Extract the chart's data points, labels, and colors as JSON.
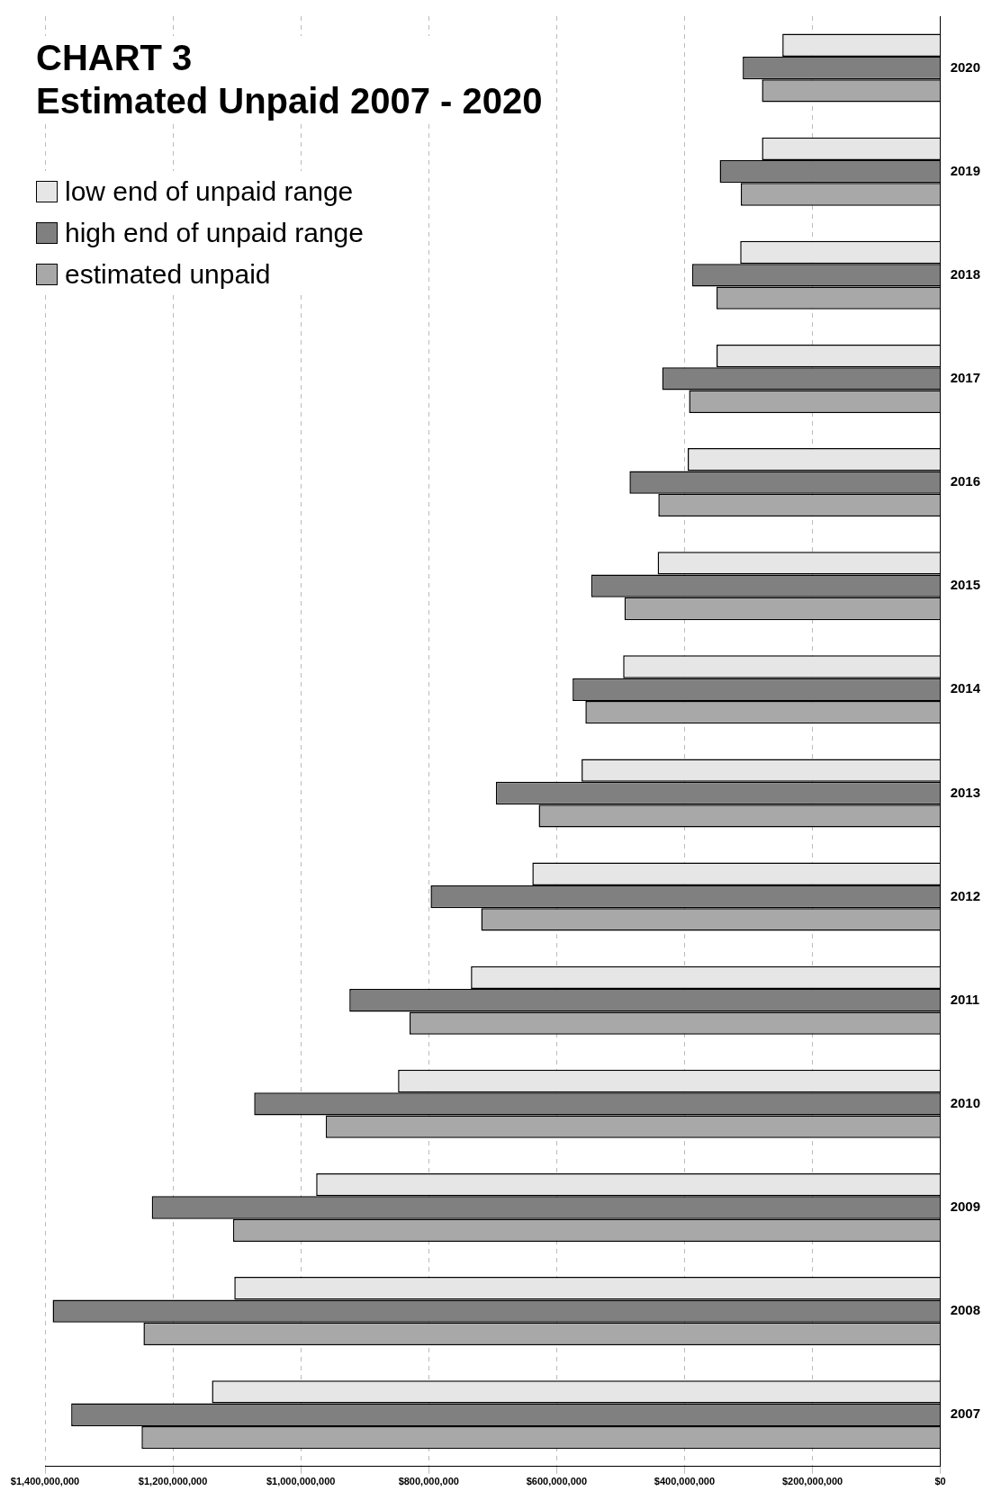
{
  "chart_data": {
    "type": "bar",
    "title": "CHART 3\nEstimated Unpaid 2007 - 2020",
    "orientation": "horizontal",
    "categories": [
      "2020",
      "2019",
      "2018",
      "2017",
      "2016",
      "2015",
      "2014",
      "2013",
      "2012",
      "2011",
      "2010",
      "2009",
      "2008",
      "2007"
    ],
    "series": [
      {
        "name": "low end of unpaid range",
        "color": "#e6e6e6",
        "values": [
          247000000,
          279000000,
          313000000,
          350000000,
          395000000,
          442000000,
          496000000,
          561000000,
          638000000,
          734000000,
          848000000,
          976000000,
          1104000000,
          1139000000
        ]
      },
      {
        "name": "high end of unpaid range",
        "color": "#808080",
        "values": [
          309000000,
          345000000,
          388000000,
          435000000,
          486000000,
          546000000,
          575000000,
          695000000,
          797000000,
          924000000,
          1073000000,
          1233000000,
          1388000000,
          1359000000
        ]
      },
      {
        "name": "estimated unpaid",
        "color": "#a8a8a8",
        "values": [
          279000000,
          312000000,
          350000000,
          393000000,
          441000000,
          494000000,
          555000000,
          628000000,
          718000000,
          830000000,
          961000000,
          1106000000,
          1246000000,
          1249000000
        ]
      }
    ],
    "xlim": [
      1400000000,
      0
    ],
    "xticks": [
      {
        "value": 0,
        "label": "$0"
      },
      {
        "value": 200000000,
        "label": "$200,000,000"
      },
      {
        "value": 400000000,
        "label": "$400,000,000"
      },
      {
        "value": 600000000,
        "label": "$600,000,000"
      },
      {
        "value": 800000000,
        "label": "$800,000,000"
      },
      {
        "value": 1000000000,
        "label": "$1,000,000,000"
      },
      {
        "value": 1200000000,
        "label": "$1,200,000,000"
      },
      {
        "value": 1400000000,
        "label": "$1,400,000,000"
      }
    ],
    "grid": "x",
    "legend": "top left"
  }
}
